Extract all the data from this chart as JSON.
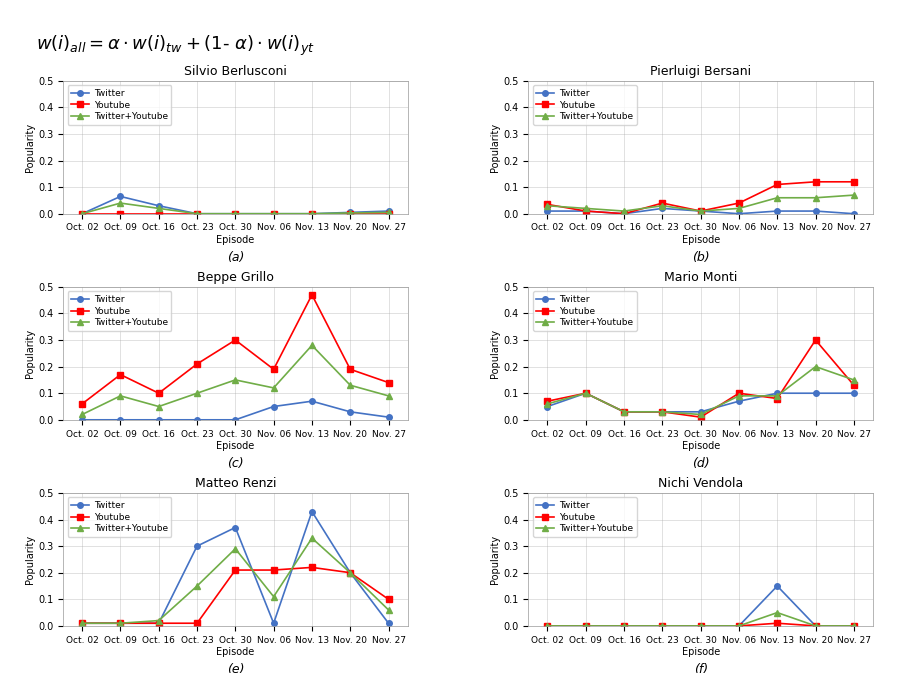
{
  "episodes": [
    "Oct. 02",
    "Oct. 09",
    "Oct. 16",
    "Oct. 23",
    "Oct. 30",
    "Nov. 06",
    "Nov. 13",
    "Nov. 20",
    "Nov. 27"
  ],
  "formula": "w(i)_all = α · w(i)_tw + (1- α) · w(i)_yt",
  "subplots": [
    {
      "title": "Silvio Berlusconi",
      "label": "(a)",
      "twitter": [
        0.0,
        0.065,
        0.03,
        0.0,
        0.0,
        0.0,
        0.0,
        0.005,
        0.01
      ],
      "youtube": [
        0.0,
        0.0,
        0.0,
        0.0,
        0.0,
        0.0,
        0.0,
        0.0,
        0.0
      ],
      "combined": [
        0.0,
        0.04,
        0.02,
        0.0,
        0.0,
        0.0,
        0.0,
        0.003,
        0.005
      ]
    },
    {
      "title": "Pierluigi Bersani",
      "label": "(b)",
      "twitter": [
        0.01,
        0.01,
        0.0,
        0.02,
        0.01,
        0.0,
        0.01,
        0.01,
        0.0
      ],
      "youtube": [
        0.035,
        0.01,
        0.0,
        0.04,
        0.01,
        0.04,
        0.11,
        0.12,
        0.12
      ],
      "combined": [
        0.03,
        0.02,
        0.01,
        0.03,
        0.01,
        0.02,
        0.06,
        0.06,
        0.07
      ]
    },
    {
      "title": "Beppe Grillo",
      "label": "(c)",
      "twitter": [
        0.0,
        0.0,
        0.0,
        0.0,
        0.0,
        0.05,
        0.07,
        0.03,
        0.01
      ],
      "youtube": [
        0.06,
        0.17,
        0.1,
        0.21,
        0.3,
        0.19,
        0.47,
        0.19,
        0.14
      ],
      "combined": [
        0.02,
        0.09,
        0.05,
        0.1,
        0.15,
        0.12,
        0.28,
        0.13,
        0.09
      ]
    },
    {
      "title": "Mario Monti",
      "label": "(d)",
      "twitter": [
        0.05,
        0.1,
        0.03,
        0.03,
        0.03,
        0.07,
        0.1,
        0.1,
        0.1
      ],
      "youtube": [
        0.07,
        0.1,
        0.03,
        0.03,
        0.01,
        0.1,
        0.08,
        0.3,
        0.13
      ],
      "combined": [
        0.06,
        0.1,
        0.03,
        0.03,
        0.02,
        0.09,
        0.09,
        0.2,
        0.15
      ]
    },
    {
      "title": "Matteo Renzi",
      "label": "(e)",
      "twitter": [
        0.01,
        0.01,
        0.01,
        0.3,
        0.37,
        0.01,
        0.43,
        0.2,
        0.01
      ],
      "youtube": [
        0.01,
        0.01,
        0.01,
        0.01,
        0.21,
        0.21,
        0.22,
        0.2,
        0.1
      ],
      "combined": [
        0.01,
        0.01,
        0.02,
        0.15,
        0.29,
        0.11,
        0.33,
        0.2,
        0.06
      ]
    },
    {
      "title": "Nichi Vendola",
      "label": "(f)",
      "twitter": [
        0.0,
        0.0,
        0.0,
        0.0,
        0.0,
        0.0,
        0.15,
        0.0,
        0.0
      ],
      "youtube": [
        0.0,
        0.0,
        0.0,
        0.0,
        0.0,
        0.0,
        0.01,
        0.0,
        0.0
      ],
      "combined": [
        0.0,
        0.0,
        0.0,
        0.0,
        0.0,
        0.0,
        0.05,
        0.0,
        0.0
      ]
    }
  ],
  "twitter_color": "#4472C4",
  "youtube_color": "#FF0000",
  "combined_color": "#70AD47",
  "marker_twitter": "o",
  "marker_youtube": "s",
  "marker_combined": "^",
  "ylim": [
    0.0,
    0.5
  ],
  "yticks": [
    0.0,
    0.1,
    0.2,
    0.3,
    0.4,
    0.5
  ]
}
